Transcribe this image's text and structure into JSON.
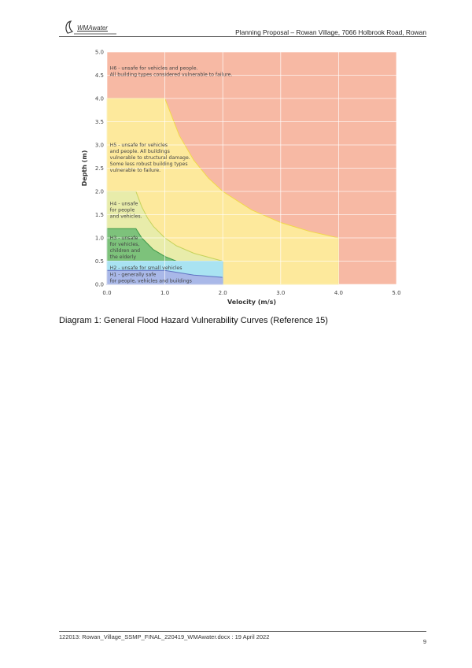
{
  "header": {
    "logo_text": "WMAwater",
    "title": "Planning Proposal – Rowan Village, 7066 Holbrook Road, Rowan"
  },
  "caption": "Diagram 1: General Flood Hazard Vulnerability Curves (Reference 15)",
  "footer": {
    "text": "122013: Rowan_Village_SSMP_FINAL_220419_WMAwater.docx : 19 April 2022",
    "page": "9"
  },
  "chart_data": {
    "type": "area",
    "xlabel": "Velocity (m/s)",
    "ylabel": "Depth (m)",
    "xlim": [
      0,
      5
    ],
    "ylim": [
      0,
      5
    ],
    "x_ticks": [
      "0.0",
      "1.0",
      "2.0",
      "3.0",
      "4.0",
      "5.0"
    ],
    "y_ticks": [
      "0.0",
      "0.5",
      "1.0",
      "1.5",
      "2.0",
      "2.5",
      "3.0",
      "3.5",
      "4.0",
      "4.5",
      "5.0"
    ],
    "grid": true,
    "zones": [
      {
        "name": "H6",
        "label_lines": [
          "H6 - unsafe for vehicles and people.",
          "All building types considered vulnerable to failure."
        ],
        "color": "#f7b9a4",
        "boundary": "whole plot area (0-5 m/s, 0-5 m)"
      },
      {
        "name": "H5",
        "label_lines": [
          "H5 - unsafe for vehicles",
          "and people. All buildings",
          "vulnerable to structural damage.",
          "Some less robust building types",
          "vulnerable to failure."
        ],
        "color": "#fde99c",
        "boundary": [
          [
            0,
            0
          ],
          [
            0,
            4.0
          ],
          [
            1.0,
            4.0
          ],
          [
            1.25,
            3.2
          ],
          [
            1.5,
            2.67
          ],
          [
            1.75,
            2.29
          ],
          [
            2.0,
            2.0
          ],
          [
            2.5,
            1.6
          ],
          [
            3.0,
            1.33
          ],
          [
            3.5,
            1.14
          ],
          [
            4.0,
            1.0
          ],
          [
            4.0,
            0
          ]
        ]
      },
      {
        "name": "H4",
        "label_lines": [
          "H4 - unsafe",
          "for people",
          "and vehicles."
        ],
        "color": "#e8ecaa",
        "boundary": [
          [
            0,
            0
          ],
          [
            0,
            2.0
          ],
          [
            0.5,
            2.0
          ],
          [
            0.6,
            1.67
          ],
          [
            0.7,
            1.43
          ],
          [
            0.8,
            1.25
          ],
          [
            1.0,
            1.0
          ],
          [
            1.2,
            0.83
          ],
          [
            1.5,
            0.67
          ],
          [
            2.0,
            0.5
          ],
          [
            2.0,
            0
          ]
        ]
      },
      {
        "name": "H3",
        "label_lines": [
          "H3 - unsafe",
          "for vehicles,",
          "children and",
          "the elderly"
        ],
        "color": "#7dc27b",
        "boundary": [
          [
            0,
            0
          ],
          [
            0,
            1.2
          ],
          [
            0.5,
            1.2
          ],
          [
            0.6,
            1.0
          ],
          [
            0.8,
            0.75
          ],
          [
            1.0,
            0.6
          ],
          [
            1.2,
            0.5
          ],
          [
            2.0,
            0.5
          ],
          [
            2.0,
            0
          ]
        ]
      },
      {
        "name": "H2",
        "label_lines": [
          "H2 - unsafe for small vehicles"
        ],
        "color": "#a9e3f2",
        "boundary": [
          [
            0,
            0
          ],
          [
            0,
            0.5
          ],
          [
            2.0,
            0.5
          ],
          [
            2.0,
            0
          ]
        ]
      },
      {
        "name": "H1",
        "label_lines": [
          "H1 - generally safe",
          "for people, vehicles and buildings"
        ],
        "color": "#a9b8e8",
        "boundary": [
          [
            0,
            0
          ],
          [
            0,
            0.3
          ],
          [
            1.0,
            0.3
          ],
          [
            1.5,
            0.2
          ],
          [
            2.0,
            0.15
          ],
          [
            2.0,
            0
          ]
        ]
      }
    ]
  }
}
